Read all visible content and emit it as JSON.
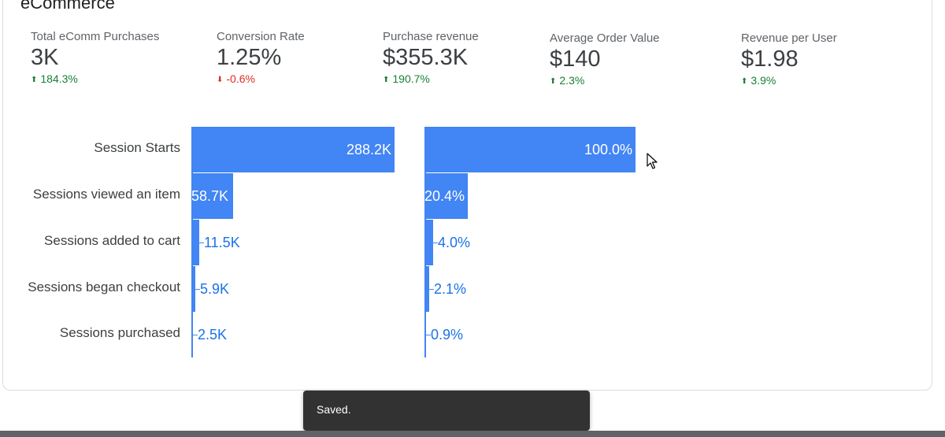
{
  "section": {
    "title": "eCommerce"
  },
  "kpis": [
    {
      "label": "Total eComm Purchases",
      "value": "3K",
      "change": "184.3%",
      "direction": "up"
    },
    {
      "label": "Conversion Rate",
      "value": "1.25%",
      "change": "-0.6%",
      "direction": "down"
    },
    {
      "label": "Purchase revenue",
      "value": "$355.3K",
      "change": "190.7%",
      "direction": "up"
    },
    {
      "label": "Average Order Value",
      "value": "$140",
      "change": "2.3%",
      "direction": "up"
    },
    {
      "label": "Revenue per User",
      "value": "$1.98",
      "change": "3.9%",
      "direction": "up"
    }
  ],
  "chart_data": {
    "type": "bar",
    "categories": [
      "Session Starts",
      "Sessions viewed an item",
      "Sessions added to cart",
      "Sessions began checkout",
      "Sessions purchased"
    ],
    "series": [
      {
        "values": [
          288200,
          58700,
          11500,
          5900,
          2500
        ],
        "labels": [
          "288.2K",
          "58.7K",
          "11.5K",
          "5.9K",
          "2.5K"
        ]
      },
      {
        "values": [
          100.0,
          20.4,
          4.0,
          2.1,
          0.9
        ],
        "labels": [
          "100.0%",
          "20.4%",
          "4.0%",
          "2.1%",
          "0.9%"
        ]
      }
    ],
    "colors": {
      "bar": "#4285f4",
      "label": "#1a73e8"
    }
  },
  "toast": {
    "message": "Saved."
  },
  "icons": {
    "kpi_up": "arrow-up-icon",
    "kpi_down": "arrow-down-icon",
    "pointer": "mouse-cursor-icon"
  }
}
